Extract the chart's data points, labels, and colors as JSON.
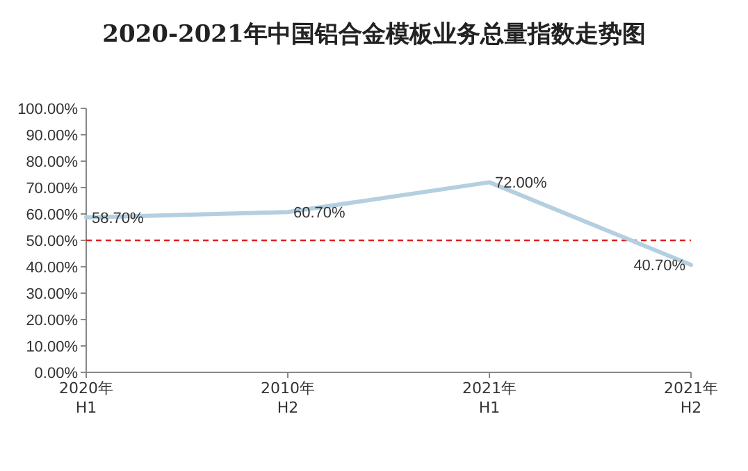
{
  "chart_data": {
    "type": "line",
    "title": "2020-2021年中国铝合金模板业务总量指数走势图",
    "categories": [
      "2020年\nH1",
      "2010年\nH2",
      "2021年\nH1",
      "2021年\nH2"
    ],
    "series": [
      {
        "color": "#b4cfe0",
        "values": [
          58.7,
          60.7,
          72.0,
          40.7
        ],
        "value_labels": [
          "58.70%",
          "60.70%",
          "72.00%",
          "40.70%"
        ]
      }
    ],
    "ylim": [
      0,
      100
    ],
    "yticks": [
      {
        "value": 0,
        "label": "0.00%"
      },
      {
        "value": 10,
        "label": "10.00%"
      },
      {
        "value": 20,
        "label": "20.00%"
      },
      {
        "value": 30,
        "label": "30.00%"
      },
      {
        "value": 40,
        "label": "40.00%"
      },
      {
        "value": 50,
        "label": "50.00%"
      },
      {
        "value": 60,
        "label": "60.00%"
      },
      {
        "value": 70,
        "label": "70.00%"
      },
      {
        "value": 80,
        "label": "80.00%"
      },
      {
        "value": 90,
        "label": "90.00%"
      },
      {
        "value": 100,
        "label": "100.00%"
      }
    ],
    "ref_lines": [
      {
        "axis": "y",
        "value": 50,
        "color": "#e02020",
        "line_style": "dashed"
      }
    ],
    "marker": "none",
    "grid": false
  }
}
